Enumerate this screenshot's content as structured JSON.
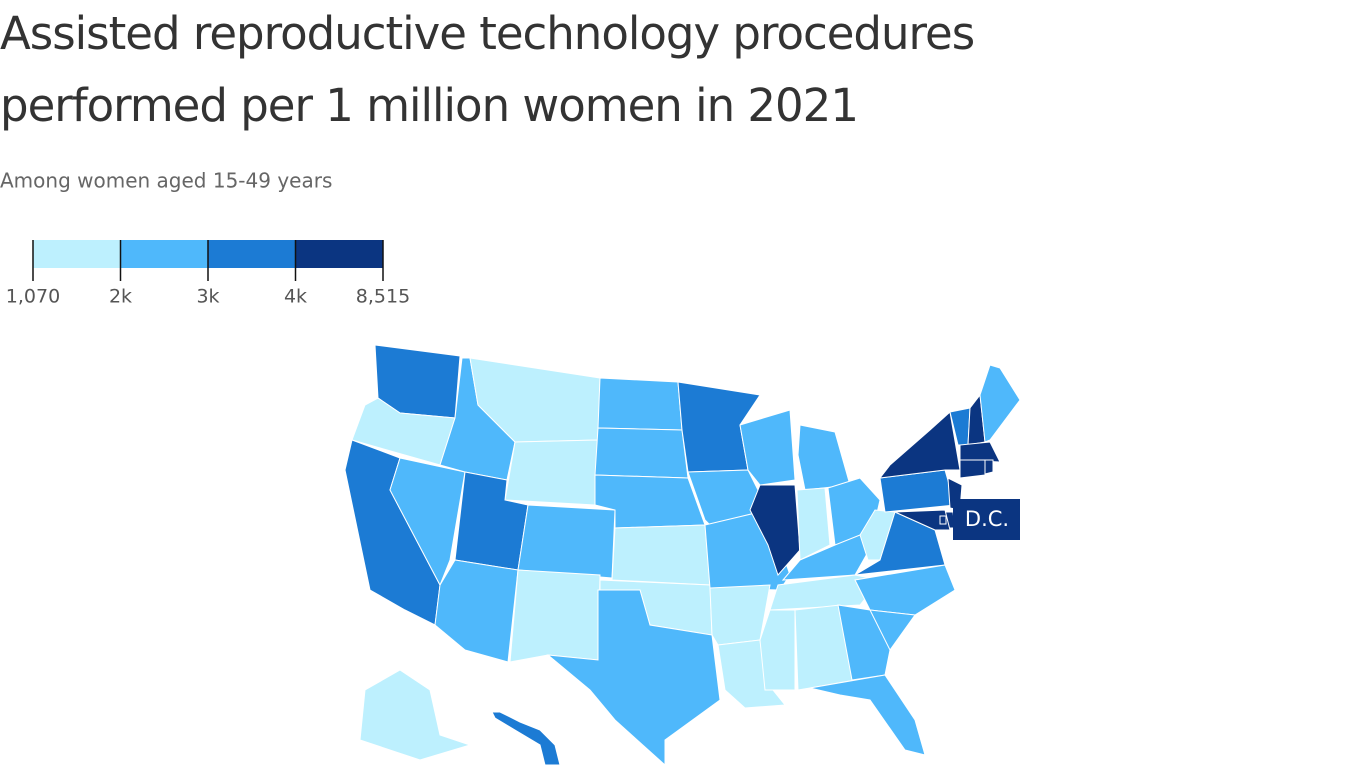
{
  "chart_data": {
    "type": "choropleth",
    "title": "Assisted reproductive technology procedures performed per 1 million women in 2021",
    "subtitle": "Among women aged 15-49 years",
    "breaks": [
      {
        "value": 1070,
        "label": "1,070"
      },
      {
        "value": 2000,
        "label": "2k"
      },
      {
        "value": 3000,
        "label": "3k"
      },
      {
        "value": 4000,
        "label": "4k"
      },
      {
        "value": 8515,
        "label": "8,515"
      }
    ],
    "colors": [
      "#bdf0fe",
      "#4fb8fb",
      "#1c7bd4",
      "#0b3581"
    ],
    "values": [
      3500,
      1500,
      3500,
      2500,
      2500,
      1500,
      1500,
      3500,
      2500,
      2500,
      1500,
      2500,
      2500,
      2500,
      1500,
      1500,
      2500,
      3500,
      2500,
      2500,
      1500,
      1500,
      2500,
      5000,
      2500,
      1500,
      2500,
      2500,
      1500,
      1500,
      1500,
      1500,
      3500,
      2500,
      2500,
      2500,
      2500,
      3500,
      5000,
      3500,
      5000,
      2500,
      5000,
      5000,
      5000,
      5000,
      5000,
      5000,
      1500,
      3500,
      5000
    ],
    "region_label": "D.C."
  }
}
